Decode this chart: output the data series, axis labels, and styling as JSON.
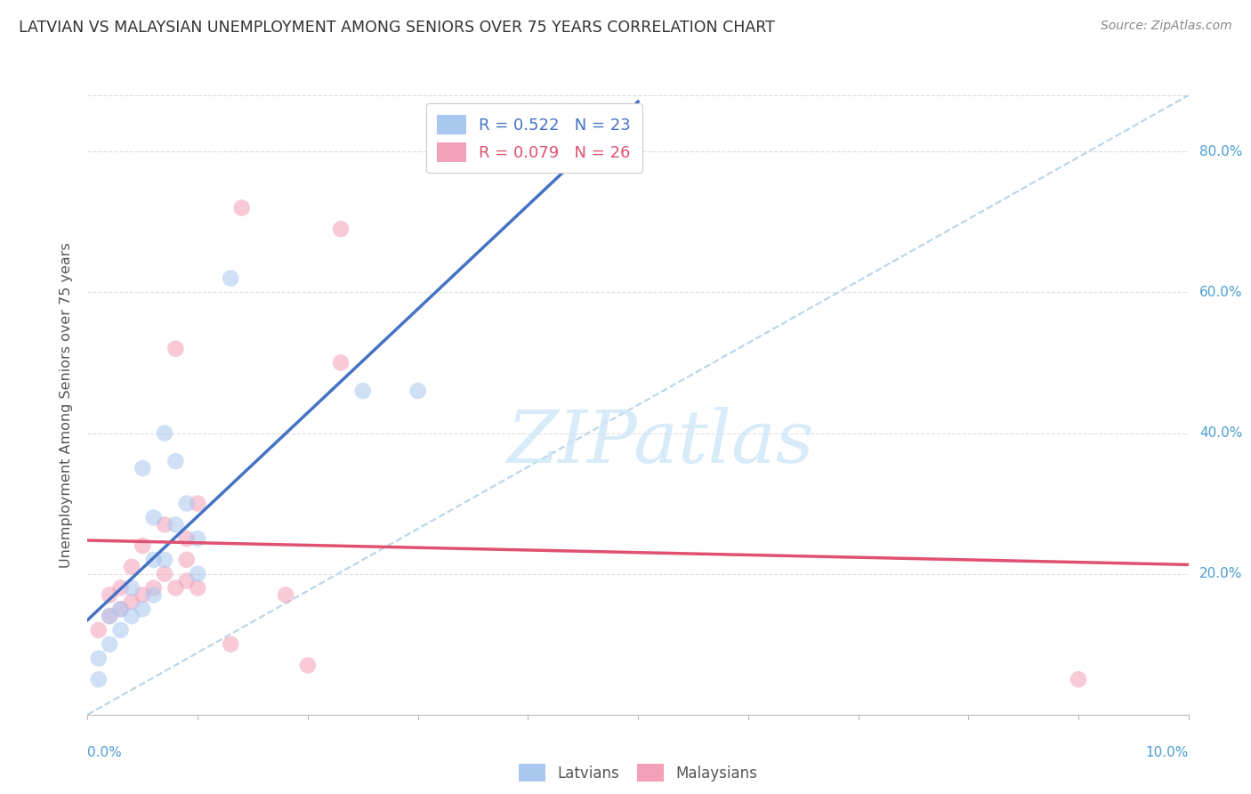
{
  "title": "LATVIAN VS MALAYSIAN UNEMPLOYMENT AMONG SENIORS OVER 75 YEARS CORRELATION CHART",
  "source": "Source: ZipAtlas.com",
  "ylabel": "Unemployment Among Seniors over 75 years",
  "yticks": [
    0.0,
    0.2,
    0.4,
    0.6,
    0.8
  ],
  "ytick_labels": [
    "",
    "20.0%",
    "40.0%",
    "60.0%",
    "80.0%"
  ],
  "xlim": [
    0.0,
    0.1
  ],
  "ylim": [
    0.0,
    0.88
  ],
  "latvian_R": 0.522,
  "latvian_N": 23,
  "malaysian_R": 0.079,
  "malaysian_N": 26,
  "latvian_color": "#A8C8F0",
  "malaysian_color": "#F4A0B8",
  "latvian_line_color": "#4472C4",
  "malaysian_line_color": "#E05070",
  "ref_line_color": "#B8D4E8",
  "latvian_x": [
    0.001,
    0.001,
    0.002,
    0.002,
    0.003,
    0.003,
    0.004,
    0.004,
    0.005,
    0.005,
    0.006,
    0.006,
    0.006,
    0.007,
    0.007,
    0.008,
    0.008,
    0.009,
    0.01,
    0.01,
    0.013,
    0.025,
    0.03
  ],
  "latvian_y": [
    0.05,
    0.08,
    0.1,
    0.14,
    0.12,
    0.15,
    0.14,
    0.18,
    0.15,
    0.35,
    0.17,
    0.22,
    0.28,
    0.22,
    0.4,
    0.27,
    0.36,
    0.3,
    0.2,
    0.25,
    0.62,
    0.46,
    0.46
  ],
  "malaysian_x": [
    0.001,
    0.002,
    0.002,
    0.003,
    0.003,
    0.004,
    0.004,
    0.005,
    0.005,
    0.006,
    0.007,
    0.007,
    0.008,
    0.008,
    0.009,
    0.009,
    0.009,
    0.01,
    0.01,
    0.013,
    0.014,
    0.018,
    0.02,
    0.023,
    0.023,
    0.09
  ],
  "malaysian_y": [
    0.12,
    0.14,
    0.17,
    0.15,
    0.18,
    0.16,
    0.21,
    0.17,
    0.24,
    0.18,
    0.2,
    0.27,
    0.18,
    0.52,
    0.22,
    0.25,
    0.19,
    0.18,
    0.3,
    0.1,
    0.72,
    0.17,
    0.07,
    0.69,
    0.5,
    0.05
  ],
  "background_color": "#FFFFFF",
  "grid_color": "#DDDDDD",
  "title_color": "#333333",
  "source_color": "#888888",
  "marker_size": 180,
  "marker_alpha": 0.55,
  "watermark_text": "ZIPatlas",
  "watermark_color": "#D0E8F8",
  "legend1_label1": "R = 0.522   N = 23",
  "legend1_label2": "R = 0.079   N = 26",
  "legend2_label1": "Latvians",
  "legend2_label2": "Malaysians"
}
